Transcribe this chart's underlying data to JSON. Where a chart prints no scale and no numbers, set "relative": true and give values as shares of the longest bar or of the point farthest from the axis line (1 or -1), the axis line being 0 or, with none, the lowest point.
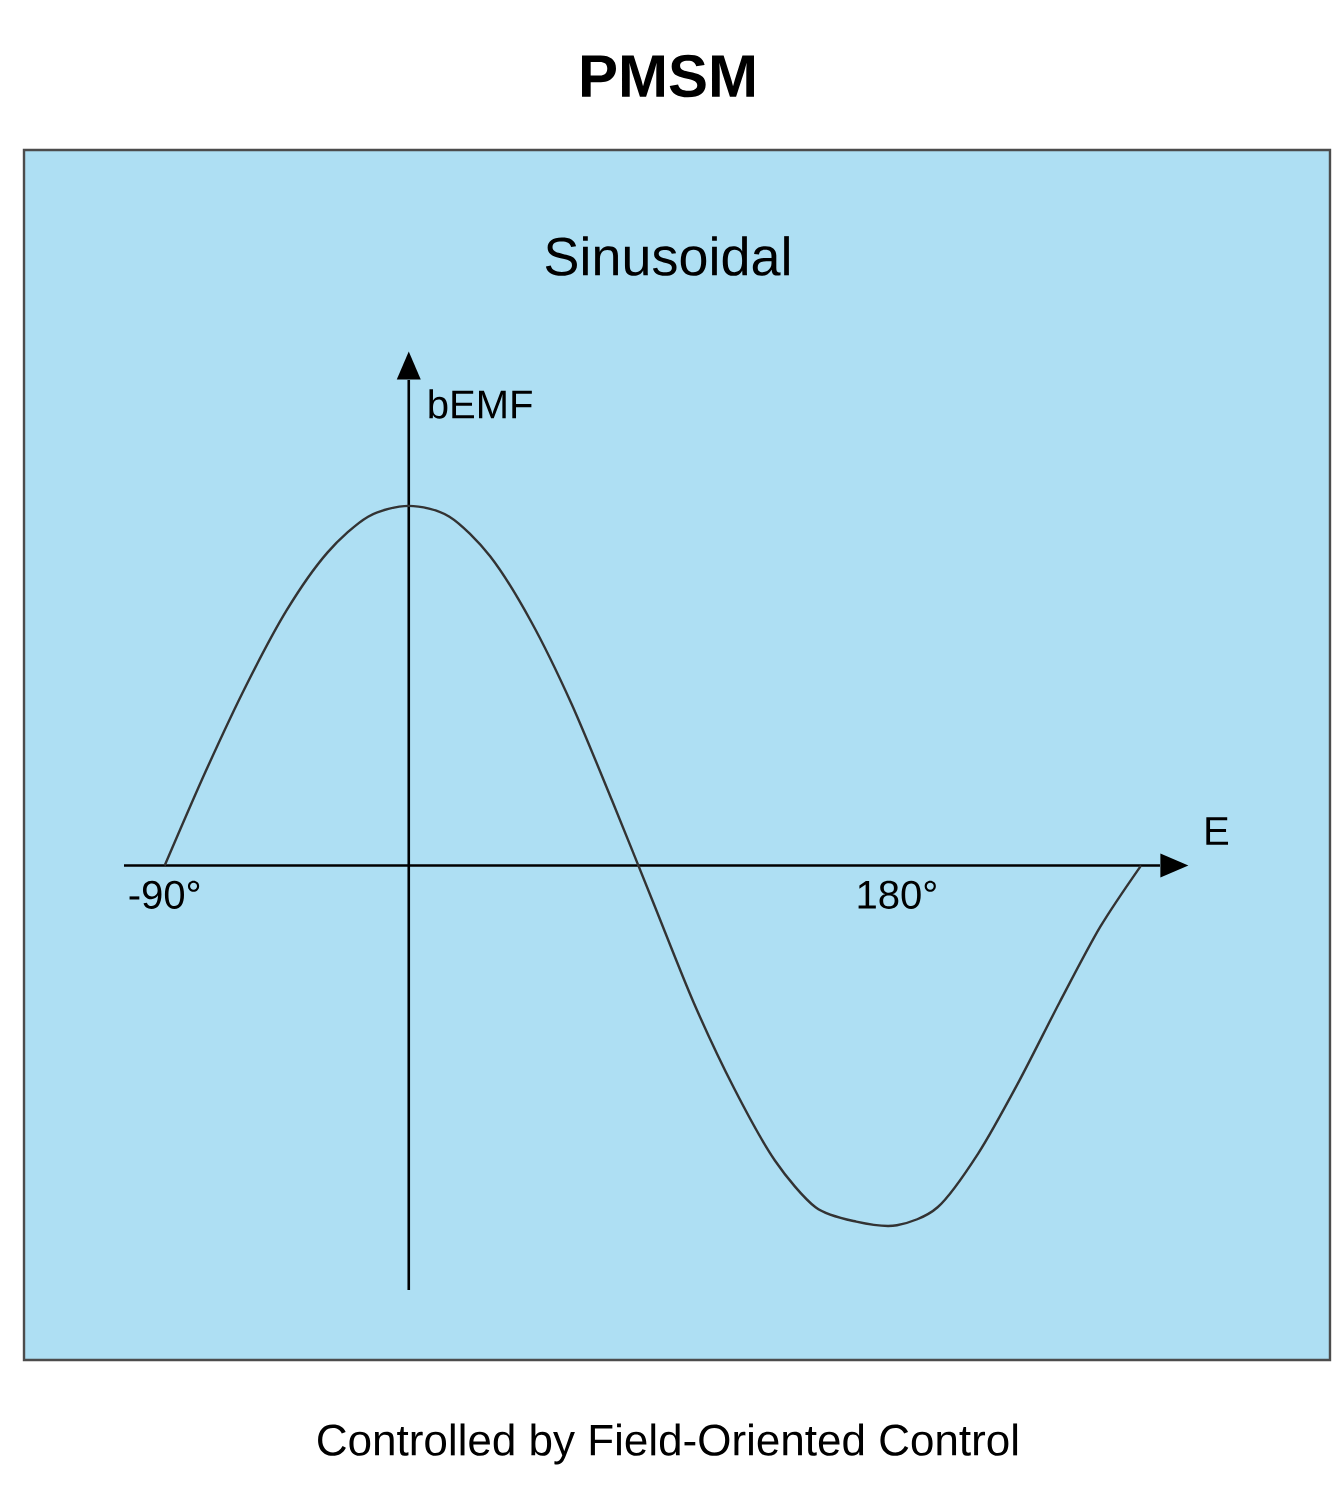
{
  "chart_data": {
    "type": "line",
    "title": "PMSM",
    "subtitle": "Sinusoidal",
    "xlabel": "E",
    "ylabel": "bEMF",
    "annotations": [
      "Controlled by Field-Oriented Control"
    ],
    "relative": true,
    "x": [
      -90,
      -75,
      -60,
      -45,
      -30,
      -15,
      0,
      15,
      30,
      45,
      60,
      75,
      90,
      105,
      120,
      135,
      150,
      165,
      180,
      195,
      210,
      225,
      240,
      255,
      270
    ],
    "series": [
      {
        "color": "#333333",
        "values": [
          0,
          0.26,
          0.5,
          0.71,
          0.87,
          0.97,
          1,
          0.97,
          0.86,
          0.68,
          0.45,
          0.18,
          -0.1,
          -0.38,
          -0.62,
          -0.82,
          -0.95,
          -0.99,
          -1,
          -0.95,
          -0.8,
          -0.6,
          -0.38,
          -0.17,
          0
        ]
      }
    ],
    "xlim": [
      -105,
      277
    ],
    "xticks": [
      {
        "value": -90,
        "label": "-90°"
      },
      {
        "value": 180,
        "label": "180°"
      }
    ],
    "grid": false,
    "marker": "none",
    "line_style": "solid"
  }
}
